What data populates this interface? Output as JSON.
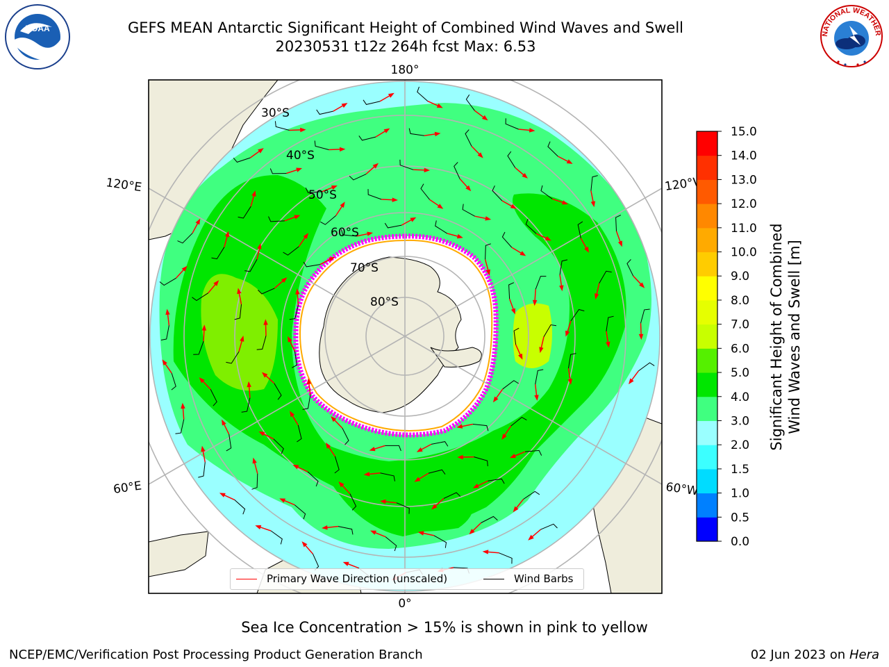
{
  "header": {
    "title": "GEFS MEAN Antarctic Significant Height of Combined Wind Waves and Swell",
    "subtitle": "20230531 t12z 264h fcst   Max: 6.53"
  },
  "logos": {
    "left": {
      "icon": "noaa-logo",
      "text": "NOAA"
    },
    "right": {
      "icon": "national-weather-service-logo",
      "text": "NATIONAL WEATHER SERVICE"
    }
  },
  "map": {
    "projection": "south-polar-stereographic",
    "longitude_labels": {
      "top": "180°",
      "bottom": "0°",
      "upper_left": "120°E",
      "upper_right": "120°W",
      "lower_left": "60°E",
      "lower_right": "60°W"
    },
    "latitude_labels": [
      "30°S",
      "40°S",
      "50°S",
      "60°S",
      "70°S",
      "80°S"
    ],
    "colors": {
      "land": "#efeddc",
      "ice_shelf": "#ffffff",
      "graticule": "#b4b4b4",
      "sea_ice_edge": [
        "#ff00ff",
        "#ffaa00",
        "#ffff00"
      ],
      "wave_arrow": "#ff0000",
      "wind_barb": "#000000"
    }
  },
  "legend": {
    "items": [
      {
        "label": "Primary Wave Direction (unscaled)",
        "color": "#ff0000"
      },
      {
        "label": "Wind Barbs",
        "color": "#000000"
      }
    ]
  },
  "colorbar": {
    "label_line1": "Significant Height of Combined",
    "label_line2": "Wind Waves and Swell [m]",
    "ticks": [
      "0.0",
      "0.5",
      "1.0",
      "1.5",
      "2.0",
      "3.0",
      "4.0",
      "5.0",
      "6.0",
      "7.0",
      "8.0",
      "9.0",
      "10.0",
      "11.0",
      "12.0",
      "13.0",
      "14.0",
      "15.0"
    ],
    "colors": [
      "#0000ff",
      "#0080ff",
      "#00dcff",
      "#3cffff",
      "#9affff",
      "#40ff80",
      "#00e600",
      "#55f000",
      "#c8ff00",
      "#e6ff00",
      "#ffff00",
      "#ffcc00",
      "#ffaa00",
      "#ff8800",
      "#ff5a00",
      "#ff3000",
      "#ff0000"
    ]
  },
  "footer": {
    "note": "Sea Ice Concentration > 15% is shown in pink to yellow",
    "left": "NCEP/EMC/Verification Post Processing Product Generation Branch",
    "right_date": "02 Jun 2023 on",
    "right_host": "Hera"
  }
}
